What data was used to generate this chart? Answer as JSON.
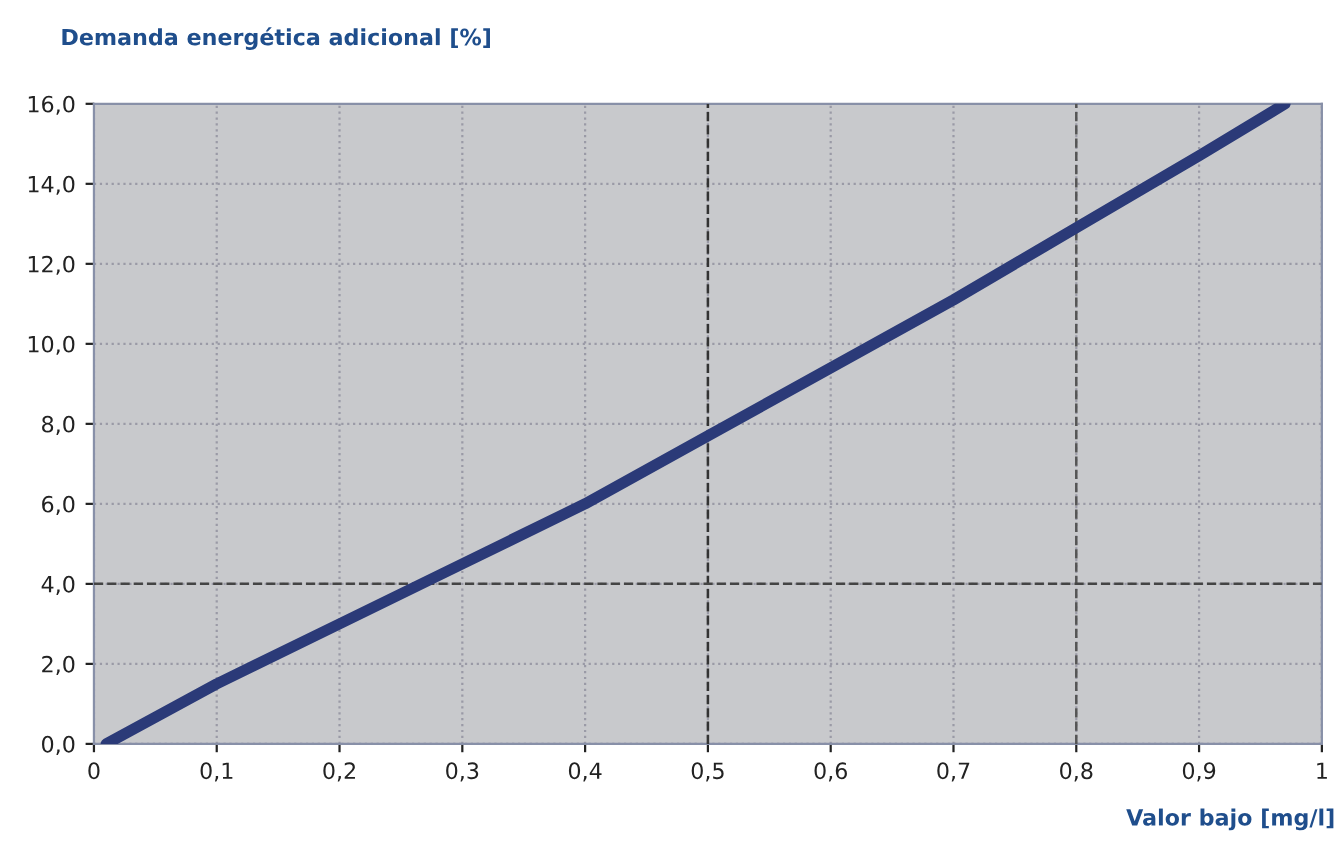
{
  "chart_data": {
    "type": "line",
    "ylabel": "Demanda energética adicional [%]",
    "xlabel": "Valor bajo [mg/l]",
    "x": [
      0.01,
      0.1,
      0.2,
      0.3,
      0.4,
      0.5,
      0.6,
      0.7,
      0.8,
      0.9,
      0.97
    ],
    "series": [
      {
        "color": "#2b3a78",
        "values": [
          0,
          1.5,
          3.0,
          4.5,
          6.0,
          7.7,
          9.4,
          11.1,
          12.9,
          14.7,
          16.0
        ]
      }
    ],
    "xlim": [
      0,
      1
    ],
    "ylim": [
      0,
      16
    ],
    "xticks": [
      0,
      {
        "value": 0.1,
        "label": "0,1"
      },
      {
        "value": 0.2,
        "label": "0,2"
      },
      {
        "value": 0.3,
        "label": "0,3"
      },
      {
        "value": 0.4,
        "label": "0,4"
      },
      {
        "value": 0.5,
        "label": "0,5"
      },
      {
        "value": 0.6,
        "label": "0,6"
      },
      {
        "value": 0.7,
        "label": "0,7"
      },
      {
        "value": 0.8,
        "label": "0,8"
      },
      {
        "value": 0.9,
        "label": "0,9"
      },
      1
    ],
    "yticks": [
      {
        "value": 0,
        "label": "0,0"
      },
      {
        "value": 2,
        "label": "2,0"
      },
      {
        "value": 4,
        "label": "4,0"
      },
      {
        "value": 6,
        "label": "6,0"
      },
      {
        "value": 8,
        "label": "8,0"
      },
      {
        "value": 10,
        "label": "10,0"
      },
      {
        "value": 12,
        "label": "12,0"
      },
      {
        "value": 14,
        "label": "14,0"
      },
      {
        "value": 16,
        "label": "16,0"
      }
    ],
    "ref_lines": [
      {
        "axis": "x",
        "value": 0.5,
        "color": "#333333",
        "line_style": "dashed"
      },
      {
        "axis": "x",
        "value": 0.8,
        "color": "#555555",
        "line_style": "dashed"
      },
      {
        "axis": "y",
        "value": 4,
        "color": "#444444",
        "line_style": "dashed"
      }
    ],
    "grid": true,
    "line_style": "solid",
    "marker": "none",
    "legend": false
  }
}
